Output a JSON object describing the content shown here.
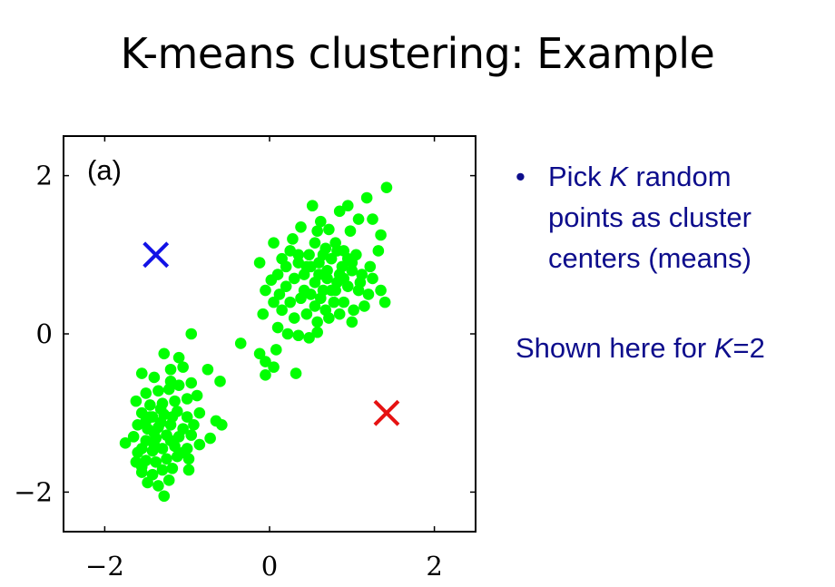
{
  "slide": {
    "title": "K-means clustering: Example",
    "bullet_marker": "•",
    "bullet_pre": "Pick ",
    "bullet_k": "K",
    "bullet_post": " random points as cluster centers (means)",
    "shown_pre": "Shown here for ",
    "shown_k": "K",
    "shown_post": "=2"
  },
  "chart_data": {
    "type": "scatter",
    "panel_label": "(a)",
    "xlim": [
      -2.5,
      2.5
    ],
    "ylim": [
      -2.5,
      2.5
    ],
    "xticks": [
      -2,
      0,
      2
    ],
    "yticks": [
      -2,
      0,
      2
    ],
    "xtick_labels": [
      "−2",
      "0",
      "2"
    ],
    "ytick_labels": [
      "−2",
      "0",
      "2"
    ],
    "grid": false,
    "colors": {
      "points": "#00ff00",
      "center1": "#1212e6",
      "center2": "#e61212"
    },
    "centers": [
      {
        "x": -1.38,
        "y": 1.0,
        "color": "blue"
      },
      {
        "x": 1.42,
        "y": -1.0,
        "color": "red"
      }
    ],
    "points": [
      [
        1.42,
        1.85
      ],
      [
        1.18,
        1.72
      ],
      [
        0.52,
        1.62
      ],
      [
        1.08,
        1.45
      ],
      [
        0.98,
        1.3
      ],
      [
        0.62,
        1.42
      ],
      [
        1.25,
        1.45
      ],
      [
        0.85,
        1.55
      ],
      [
        0.72,
        1.32
      ],
      [
        0.58,
        1.3
      ],
      [
        0.38,
        1.35
      ],
      [
        0.95,
        1.62
      ],
      [
        1.35,
        1.25
      ],
      [
        0.55,
        1.15
      ],
      [
        0.68,
        1.08
      ],
      [
        0.82,
        1.05
      ],
      [
        0.05,
        1.15
      ],
      [
        0.15,
        0.95
      ],
      [
        0.25,
        1.05
      ],
      [
        0.35,
        1.0
      ],
      [
        0.45,
        0.85
      ],
      [
        0.6,
        0.9
      ],
      [
        0.75,
        0.95
      ],
      [
        0.88,
        0.85
      ],
      [
        1.0,
        0.8
      ],
      [
        1.12,
        0.75
      ],
      [
        1.22,
        0.85
      ],
      [
        1.32,
        1.05
      ],
      [
        0.42,
        0.75
      ],
      [
        0.55,
        0.65
      ],
      [
        0.7,
        0.7
      ],
      [
        0.82,
        0.65
      ],
      [
        0.95,
        0.6
      ],
      [
        1.08,
        0.55
      ],
      [
        1.2,
        0.5
      ],
      [
        1.35,
        0.55
      ],
      [
        0.3,
        0.7
      ],
      [
        0.2,
        0.6
      ],
      [
        0.1,
        0.75
      ],
      [
        -0.12,
        0.9
      ],
      [
        0.02,
        0.68
      ],
      [
        0.12,
        0.5
      ],
      [
        0.25,
        0.4
      ],
      [
        0.38,
        0.45
      ],
      [
        0.5,
        0.5
      ],
      [
        0.62,
        0.45
      ],
      [
        0.78,
        0.4
      ],
      [
        0.9,
        0.4
      ],
      [
        1.02,
        0.3
      ],
      [
        1.15,
        0.35
      ],
      [
        1.4,
        0.4
      ],
      [
        0.15,
        0.3
      ],
      [
        0.3,
        0.2
      ],
      [
        0.45,
        0.25
      ],
      [
        0.58,
        0.15
      ],
      [
        0.72,
        0.2
      ],
      [
        0.85,
        0.25
      ],
      [
        1.0,
        0.15
      ],
      [
        -0.05,
        0.55
      ],
      [
        0.05,
        0.4
      ],
      [
        0.65,
        0.55
      ],
      [
        0.8,
        0.55
      ],
      [
        0.35,
        0.9
      ],
      [
        0.48,
        1.0
      ],
      [
        0.9,
        1.05
      ],
      [
        1.05,
        1.0
      ],
      [
        0.95,
        0.95
      ],
      [
        0.7,
        0.8
      ],
      [
        0.85,
        0.75
      ],
      [
        0.6,
        0.75
      ],
      [
        0.5,
        0.85
      ],
      [
        1.1,
        0.65
      ],
      [
        0.42,
        0.55
      ],
      [
        0.55,
        0.35
      ],
      [
        0.68,
        0.3
      ],
      [
        0.75,
        0.55
      ],
      [
        0.9,
        0.7
      ],
      [
        1.0,
        0.9
      ],
      [
        0.65,
        1.0
      ],
      [
        0.8,
        1.15
      ],
      [
        0.28,
        1.2
      ],
      [
        0.2,
        0.85
      ],
      [
        1.25,
        0.7
      ],
      [
        -0.08,
        0.25
      ],
      [
        0.1,
        0.08
      ],
      [
        0.22,
        0.0
      ],
      [
        0.35,
        -0.02
      ],
      [
        0.48,
        -0.05
      ],
      [
        0.08,
        -0.2
      ],
      [
        -0.05,
        -0.35
      ],
      [
        0.05,
        -0.42
      ],
      [
        -0.12,
        -0.25
      ],
      [
        -0.35,
        -0.12
      ],
      [
        -0.05,
        -0.52
      ],
      [
        0.32,
        -0.5
      ],
      [
        0.58,
        0.02
      ],
      [
        -0.95,
        0.0
      ],
      [
        -1.55,
        -0.5
      ],
      [
        -1.4,
        -0.55
      ],
      [
        -1.2,
        -0.45
      ],
      [
        -1.05,
        -0.42
      ],
      [
        -0.75,
        -0.45
      ],
      [
        -0.6,
        -0.6
      ],
      [
        -1.5,
        -0.75
      ],
      [
        -1.35,
        -0.72
      ],
      [
        -1.22,
        -0.7
      ],
      [
        -1.1,
        -0.65
      ],
      [
        -0.95,
        -0.62
      ],
      [
        -1.62,
        -0.85
      ],
      [
        -1.45,
        -0.9
      ],
      [
        -1.3,
        -0.88
      ],
      [
        -1.15,
        -0.85
      ],
      [
        -1.0,
        -0.82
      ],
      [
        -0.88,
        -0.78
      ],
      [
        -1.55,
        -1.0
      ],
      [
        -1.42,
        -1.05
      ],
      [
        -1.28,
        -1.02
      ],
      [
        -1.12,
        -0.98
      ],
      [
        -1.0,
        -1.05
      ],
      [
        -0.85,
        -1.0
      ],
      [
        -1.6,
        -1.15
      ],
      [
        -1.48,
        -1.2
      ],
      [
        -1.35,
        -1.18
      ],
      [
        -1.2,
        -1.15
      ],
      [
        -1.05,
        -1.2
      ],
      [
        -0.92,
        -1.15
      ],
      [
        -1.65,
        -1.3
      ],
      [
        -1.5,
        -1.35
      ],
      [
        -1.38,
        -1.32
      ],
      [
        -1.25,
        -1.28
      ],
      [
        -1.1,
        -1.3
      ],
      [
        -0.95,
        -1.28
      ],
      [
        -1.55,
        -1.45
      ],
      [
        -1.42,
        -1.48
      ],
      [
        -1.3,
        -1.45
      ],
      [
        -1.15,
        -1.42
      ],
      [
        -1.0,
        -1.45
      ],
      [
        -0.85,
        -1.4
      ],
      [
        -1.5,
        -1.6
      ],
      [
        -1.38,
        -1.62
      ],
      [
        -1.25,
        -1.58
      ],
      [
        -1.12,
        -1.55
      ],
      [
        -0.98,
        -1.58
      ],
      [
        -1.55,
        -1.75
      ],
      [
        -1.42,
        -1.78
      ],
      [
        -1.3,
        -1.72
      ],
      [
        -1.18,
        -1.7
      ],
      [
        -1.48,
        -1.88
      ],
      [
        -1.35,
        -1.92
      ],
      [
        -1.22,
        -1.85
      ],
      [
        -1.28,
        -2.05
      ],
      [
        -1.55,
        -1.68
      ],
      [
        -0.65,
        -1.1
      ],
      [
        -0.58,
        -1.15
      ],
      [
        -0.72,
        -1.32
      ],
      [
        -1.1,
        -0.3
      ],
      [
        -1.28,
        -0.25
      ],
      [
        -0.98,
        -1.72
      ],
      [
        -1.75,
        -1.38
      ],
      [
        -1.6,
        -1.5
      ],
      [
        -1.45,
        -1.05
      ],
      [
        -1.32,
        -1.12
      ],
      [
        -1.18,
        -1.05
      ],
      [
        -1.4,
        -1.4
      ],
      [
        -1.2,
        -1.35
      ],
      [
        -1.32,
        -0.95
      ],
      [
        -1.05,
        -1.5
      ],
      [
        -1.62,
        -1.62
      ],
      [
        -1.2,
        -0.6
      ],
      [
        -1.4,
        -1.25
      ],
      [
        -1.5,
        -1.1
      ]
    ]
  }
}
